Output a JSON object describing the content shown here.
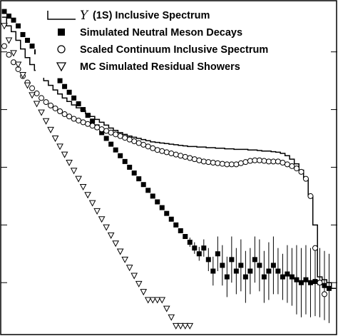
{
  "chart_data": {
    "type": "scatter",
    "title": "",
    "xlabel": "",
    "ylabel": "",
    "y_scale": "log",
    "x_units": "bin index (axis tick labels not shown)",
    "legend_placement": "top-right",
    "legend": [
      {
        "symbol": "Υ",
        "label": "(1S) Inclusive Spectrum",
        "marker": "histogram"
      },
      {
        "symbol": "",
        "label": "Simulated Neutral Meson Decays",
        "marker": "filled-square"
      },
      {
        "symbol": "",
        "label": "Scaled Continuum Inclusive Spectrum",
        "marker": "open-circle"
      },
      {
        "symbol": "",
        "label": "MC Simulated Residual Showers",
        "marker": "open-triangle-down"
      }
    ],
    "series": [
      {
        "name": "(1S) Inclusive Spectrum",
        "marker": "histogram",
        "x": [
          0,
          1,
          2,
          3,
          4,
          5,
          6,
          7,
          8,
          9,
          10,
          11,
          12,
          13,
          14,
          15,
          16,
          17,
          18,
          19,
          20,
          21,
          22,
          23,
          24,
          25,
          26,
          27,
          28,
          29,
          30,
          31,
          32,
          33,
          34,
          35,
          36,
          37,
          38,
          39,
          40,
          41,
          42,
          43,
          44,
          45,
          46,
          47,
          48,
          49,
          50,
          51,
          52,
          53,
          54,
          55,
          56,
          57,
          58,
          59,
          60,
          61,
          62,
          63,
          64,
          65,
          66,
          67,
          68,
          69,
          70,
          71
        ],
        "values": [
          1.6,
          1.45,
          1.35,
          1.2,
          1.05,
          0.9,
          0.78,
          0.68,
          0.6,
          0.5,
          0.42,
          0.34,
          0.27,
          0.2,
          0.14,
          0.08,
          0.03,
          -0.02,
          -0.07,
          -0.12,
          -0.17,
          -0.22,
          -0.27,
          -0.32,
          -0.36,
          -0.4,
          -0.43,
          -0.46,
          -0.48,
          -0.5,
          -0.52,
          -0.54,
          -0.56,
          -0.57,
          -0.58,
          -0.59,
          -0.6,
          -0.61,
          -0.62,
          -0.63,
          -0.64,
          -0.64,
          -0.65,
          -0.65,
          -0.66,
          -0.66,
          -0.67,
          -0.67,
          -0.68,
          -0.68,
          -0.69,
          -0.69,
          -0.69,
          -0.7,
          -0.7,
          -0.71,
          -0.72,
          -0.72,
          -0.73,
          -0.74,
          -0.76,
          -0.8,
          -0.86,
          -0.94,
          -1.05,
          -1.2,
          -1.5,
          -2.0,
          -2.9,
          -2.95,
          -3.0,
          -3.1
        ]
      },
      {
        "name": "Simulated Neutral Meson Decays",
        "marker": "filled-square",
        "x": [
          0,
          1,
          2,
          3,
          4,
          5,
          6,
          7,
          8,
          9,
          10,
          11,
          12,
          13,
          14,
          15,
          16,
          17,
          18,
          19,
          20,
          21,
          22,
          23,
          24,
          25,
          26,
          27,
          28,
          29,
          30,
          31,
          32,
          33,
          34,
          35,
          36,
          37,
          38,
          39,
          40,
          41,
          42,
          43,
          44,
          45,
          46,
          47,
          48,
          49,
          50,
          51,
          52,
          53,
          54,
          55,
          56,
          57,
          58,
          59,
          60,
          61,
          62,
          63,
          64,
          65,
          66,
          67,
          68,
          69,
          70
        ],
        "values": [
          1.7,
          1.62,
          1.55,
          1.45,
          1.3,
          1.2,
          1.1,
          1.0,
          0.9,
          0.8,
          0.7,
          0.6,
          0.5,
          0.4,
          0.3,
          0.2,
          0.1,
          0.0,
          -0.1,
          -0.2,
          -0.3,
          -0.4,
          -0.5,
          -0.6,
          -0.7,
          -0.8,
          -0.9,
          -1.0,
          -1.1,
          -1.2,
          -1.3,
          -1.4,
          -1.5,
          -1.6,
          -1.7,
          -1.8,
          -1.9,
          -2.0,
          -2.1,
          -2.2,
          -2.3,
          -2.4,
          -2.5,
          -2.4,
          -2.6,
          -2.8,
          -2.5,
          -2.7,
          -2.9,
          -2.6,
          -2.8,
          -2.7,
          -2.9,
          -2.8,
          -2.6,
          -2.7,
          -2.9,
          -2.8,
          -2.7,
          -2.8,
          -2.9,
          -2.85,
          -2.9,
          -2.95,
          -3.0,
          -2.95,
          -3.0,
          -2.98,
          -3.0,
          -3.05,
          -3.1
        ],
        "errors": [
          0,
          0,
          0,
          0,
          0,
          0,
          0,
          0,
          0,
          0,
          0,
          0,
          0,
          0,
          0,
          0,
          0,
          0,
          0,
          0,
          0,
          0,
          0,
          0,
          0,
          0,
          0,
          0,
          0,
          0,
          0,
          0,
          0,
          0,
          0,
          0,
          0,
          0,
          0,
          0,
          0.08,
          0.1,
          0.12,
          0.15,
          0.2,
          0.25,
          0.3,
          0.35,
          0.35,
          0.4,
          0.4,
          0.45,
          0.45,
          0.4,
          0.4,
          0.45,
          0.45,
          0.5,
          0.5,
          0.4,
          0.4,
          0.5,
          0.5,
          0.6,
          0.6,
          0.6,
          0.6,
          0.6,
          0.6,
          0.6,
          0.6
        ]
      },
      {
        "name": "Scaled Continuum Inclusive Spectrum",
        "marker": "open-circle",
        "x": [
          0,
          1,
          2,
          3,
          4,
          5,
          6,
          7,
          8,
          9,
          10,
          11,
          12,
          13,
          14,
          15,
          16,
          17,
          18,
          19,
          20,
          21,
          22,
          23,
          24,
          25,
          26,
          27,
          28,
          29,
          30,
          31,
          32,
          33,
          34,
          35,
          36,
          37,
          38,
          39,
          40,
          41,
          42,
          43,
          44,
          45,
          46,
          47,
          48,
          49,
          50,
          51,
          52,
          53,
          54,
          55,
          56,
          57,
          58,
          59,
          60,
          61,
          62,
          63,
          64,
          65,
          66,
          67,
          68,
          69
        ],
        "values": [
          1.1,
          0.95,
          0.82,
          0.7,
          0.58,
          0.47,
          0.37,
          0.28,
          0.2,
          0.13,
          0.07,
          0.02,
          -0.03,
          -0.08,
          -0.12,
          -0.16,
          -0.19,
          -0.22,
          -0.25,
          -0.28,
          -0.31,
          -0.34,
          -0.37,
          -0.4,
          -0.43,
          -0.46,
          -0.49,
          -0.52,
          -0.55,
          -0.58,
          -0.61,
          -0.64,
          -0.67,
          -0.7,
          -0.72,
          -0.74,
          -0.76,
          -0.78,
          -0.8,
          -0.82,
          -0.84,
          -0.86,
          -0.88,
          -0.9,
          -0.91,
          -0.92,
          -0.93,
          -0.94,
          -0.95,
          -0.95,
          -0.95,
          -0.93,
          -0.91,
          -0.89,
          -0.88,
          -0.88,
          -0.89,
          -0.9,
          -0.9,
          -0.9,
          -0.92,
          -0.95,
          -0.98,
          -1.02,
          -1.08,
          -1.2,
          -1.5,
          -2.4,
          -3.0,
          -3.2
        ]
      },
      {
        "name": "MC Simulated Residual Showers",
        "marker": "open-triangle-down",
        "x": [
          0,
          1,
          2,
          3,
          4,
          5,
          6,
          7,
          8,
          9,
          10,
          11,
          12,
          13,
          14,
          15,
          16,
          17,
          18,
          19,
          20,
          21,
          22,
          23,
          24,
          25,
          26,
          27,
          28,
          29,
          30,
          31,
          32,
          33,
          34,
          35,
          36,
          37,
          38,
          39,
          40
        ],
        "values": [
          1.45,
          1.2,
          0.98,
          0.78,
          0.6,
          0.42,
          0.25,
          0.1,
          -0.05,
          -0.2,
          -0.35,
          -0.5,
          -0.64,
          -0.78,
          -0.92,
          -1.06,
          -1.2,
          -1.34,
          -1.48,
          -1.62,
          -1.76,
          -1.9,
          -2.04,
          -2.18,
          -2.32,
          -2.46,
          -2.6,
          -2.74,
          -2.88,
          -3.02,
          -3.16,
          -3.3,
          -3.3,
          -3.3,
          -3.3,
          -3.45,
          -3.6,
          -3.75,
          -3.75,
          -3.75,
          -3.75
        ]
      }
    ]
  }
}
